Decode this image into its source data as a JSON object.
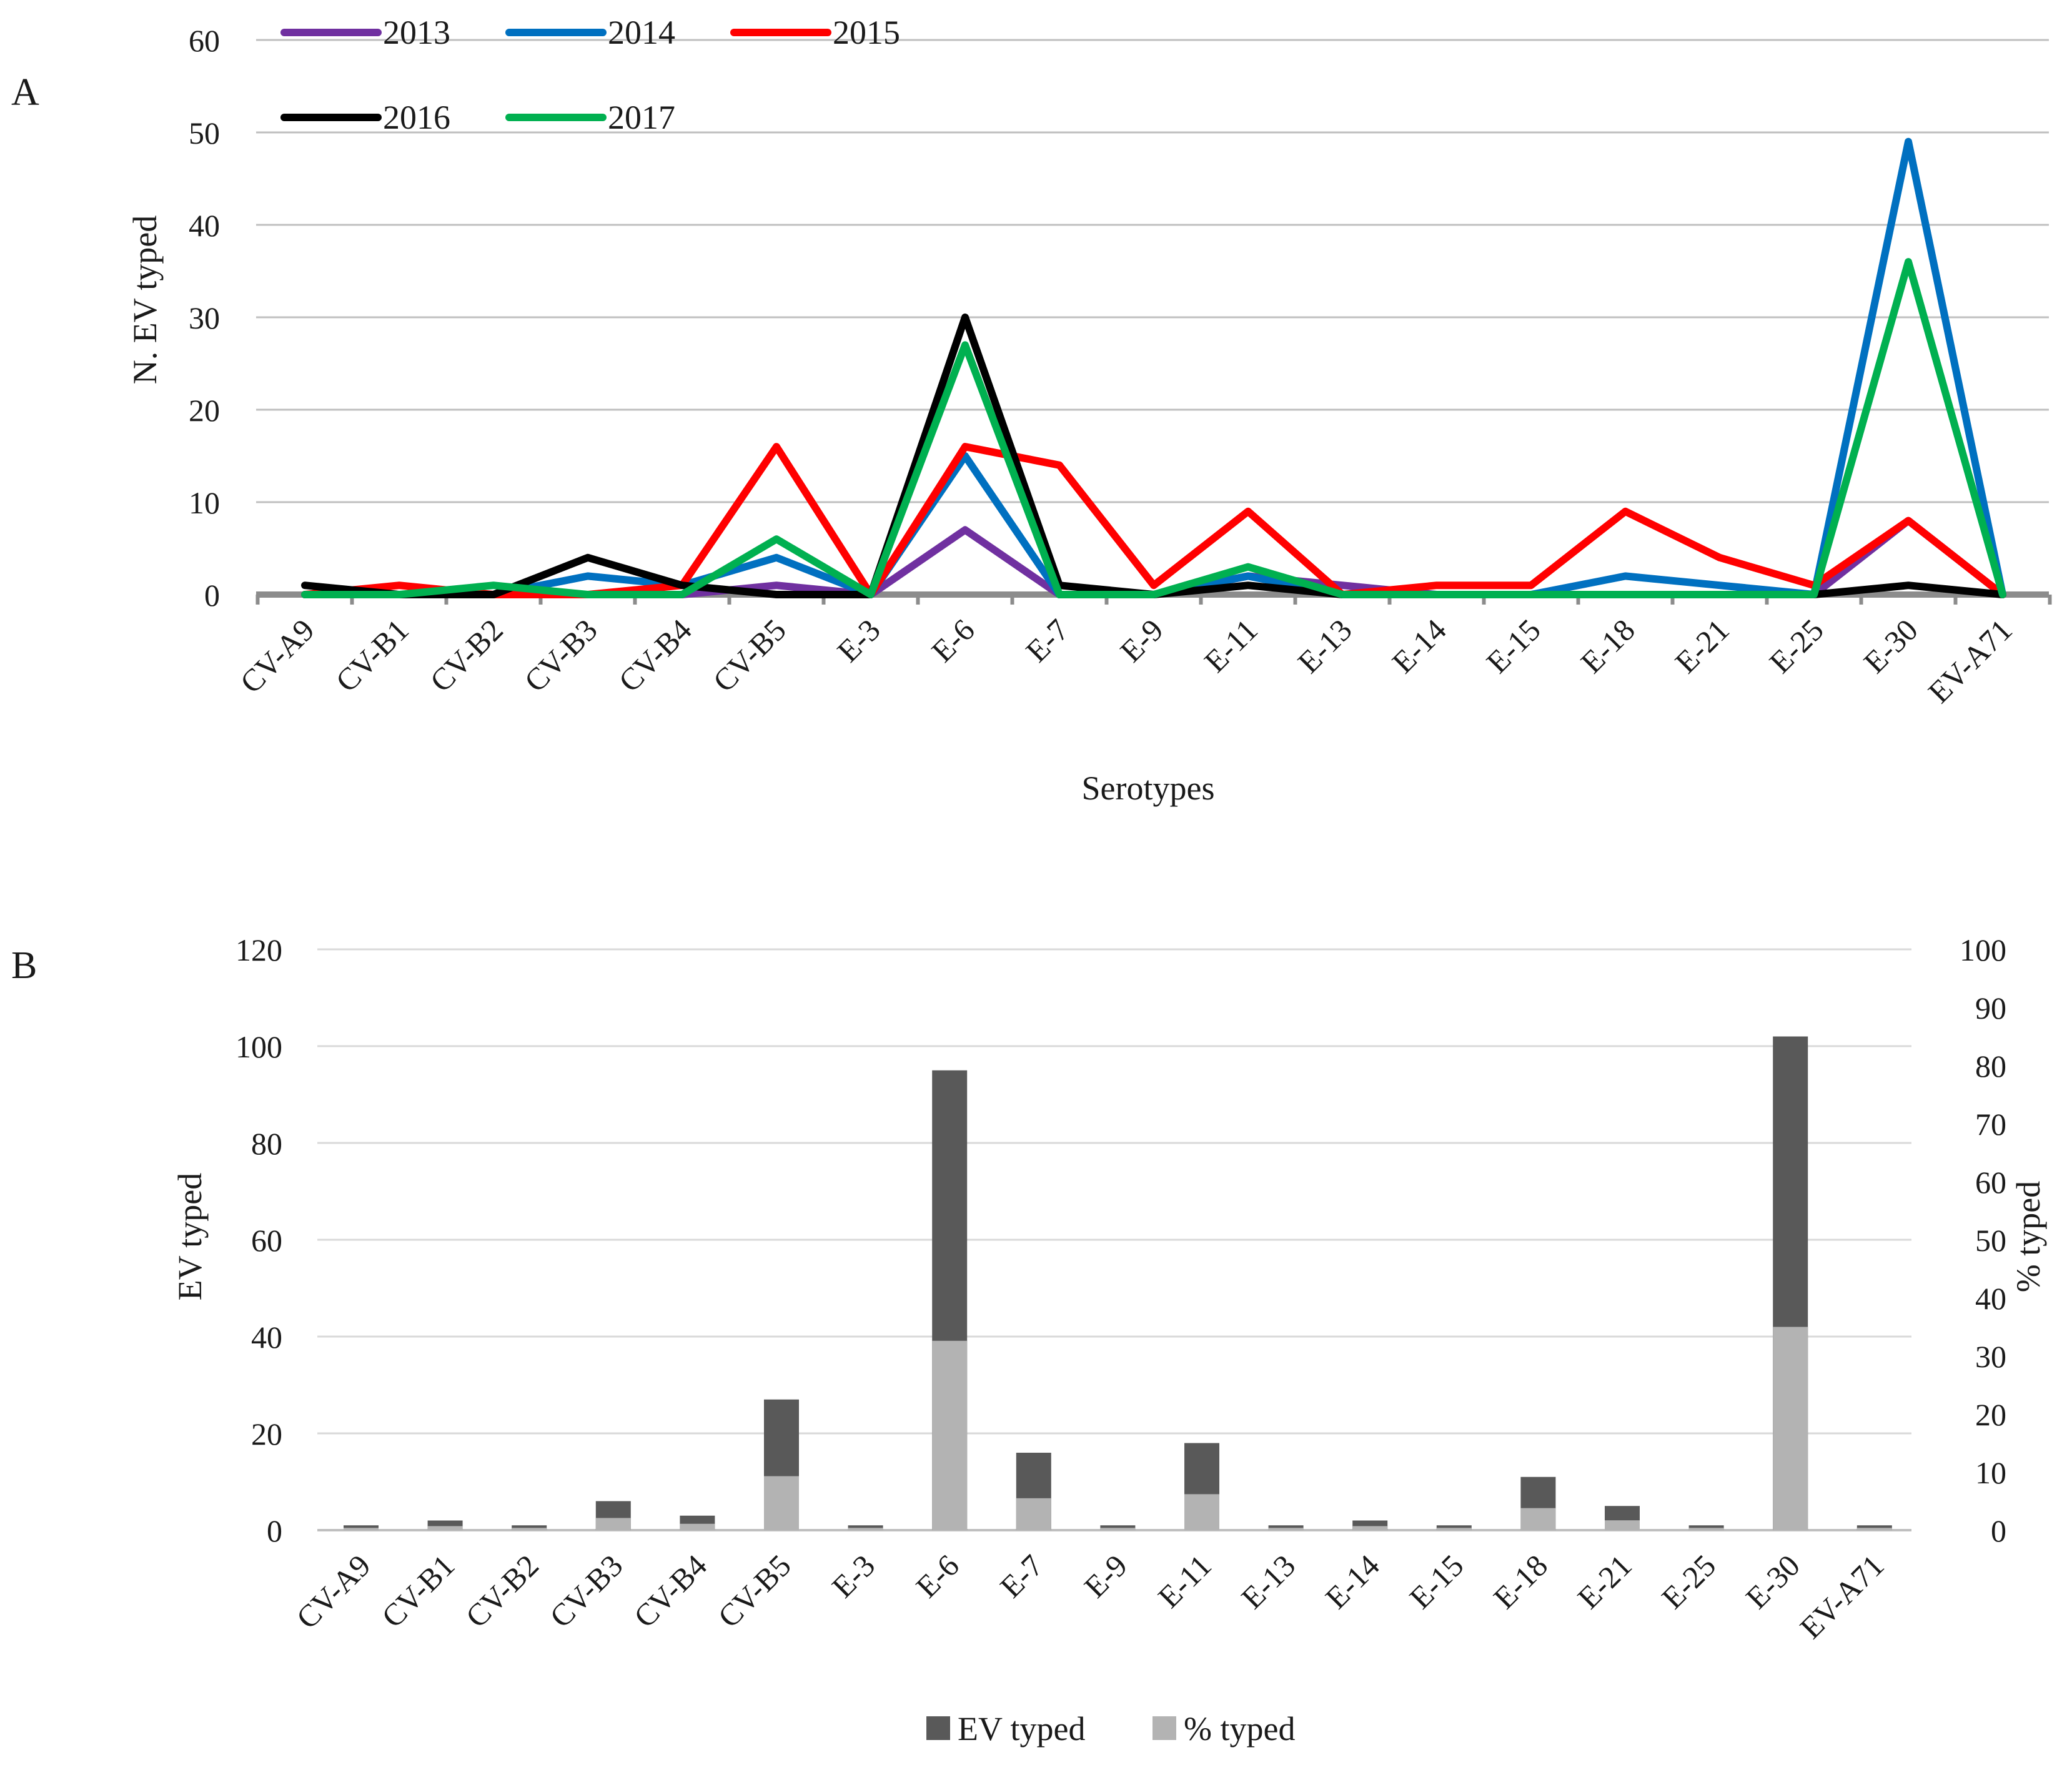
{
  "panel_a": {
    "label": "A",
    "chart_data": {
      "type": "line",
      "categories": [
        "CV-A9",
        "CV-B1",
        "CV-B2",
        "CV-B3",
        "CV-B4",
        "CV-B5",
        "E-3",
        "E-6",
        "E-7",
        "E-9",
        "E-11",
        "E-13",
        "E-14",
        "E-15",
        "E-18",
        "E-21",
        "E-25",
        "E-30",
        "EV-A71"
      ],
      "series": [
        {
          "name": "2013",
          "color": "#7030a0",
          "values": [
            0,
            0,
            0,
            0,
            0,
            1,
            0,
            7,
            0,
            0,
            2,
            1,
            0,
            0,
            0,
            0,
            0,
            8,
            0
          ]
        },
        {
          "name": "2014",
          "color": "#0070c0",
          "values": [
            0,
            0,
            0,
            2,
            1,
            4,
            0,
            15,
            0,
            0,
            2,
            0,
            0,
            0,
            2,
            1,
            0,
            49,
            0
          ]
        },
        {
          "name": "2015",
          "color": "#ff0000",
          "values": [
            0,
            1,
            0,
            0,
            1,
            16,
            0,
            16,
            14,
            1,
            9,
            0,
            1,
            1,
            9,
            4,
            1,
            8,
            0
          ]
        },
        {
          "name": "2016",
          "color": "#000000",
          "values": [
            1,
            0,
            0,
            4,
            1,
            0,
            0,
            30,
            1,
            0,
            1,
            0,
            0,
            0,
            0,
            0,
            0,
            1,
            0
          ]
        },
        {
          "name": "2017",
          "color": "#00b050",
          "values": [
            0,
            0,
            1,
            0,
            0,
            6,
            0,
            27,
            0,
            0,
            3,
            0,
            0,
            0,
            0,
            0,
            0,
            36,
            0
          ]
        }
      ],
      "title": "",
      "xlabel": "Serotypes",
      "ylabel": "N. EV typed",
      "ylim": [
        0,
        60
      ],
      "yticks": [
        0,
        10,
        20,
        30,
        40,
        50,
        60
      ],
      "grid": true,
      "legend_position": "top-left"
    }
  },
  "panel_b": {
    "label": "B",
    "chart_data": {
      "type": "bar",
      "stacked": true,
      "categories": [
        "CV-A9",
        "CV-B1",
        "CV-B2",
        "CV-B3",
        "CV-B4",
        "CV-B5",
        "E-3",
        "E-6",
        "E-7",
        "E-9",
        "E-11",
        "E-13",
        "E-14",
        "E-15",
        "E-18",
        "E-21",
        "E-25",
        "E-30",
        "EV-A71"
      ],
      "series": [
        {
          "name": "EV typed",
          "color": "#595959",
          "axis": "left",
          "values": [
            1,
            2,
            1,
            6,
            3,
            27,
            1,
            95,
            16,
            1,
            18,
            1,
            2,
            1,
            11,
            5,
            1,
            102,
            1
          ]
        },
        {
          "name": "% typed",
          "color": "#b3b3b3",
          "axis": "right",
          "values": [
            0.4,
            0.7,
            0.4,
            2.1,
            1.1,
            9.3,
            0.4,
            32.6,
            5.5,
            0.4,
            6.2,
            0.4,
            0.7,
            0.4,
            3.8,
            1.7,
            0.4,
            35.0,
            0.4
          ]
        }
      ],
      "title": "",
      "xlabel": "",
      "ylabel": "EV typed",
      "y2label": "% typed",
      "ylim": [
        0,
        120
      ],
      "y2lim": [
        0,
        100
      ],
      "yticks": [
        0,
        20,
        40,
        60,
        80,
        100,
        120
      ],
      "y2ticks": [
        0,
        10,
        20,
        30,
        40,
        50,
        60,
        70,
        80,
        90,
        100
      ],
      "grid": true,
      "legend_position": "bottom-center"
    }
  }
}
